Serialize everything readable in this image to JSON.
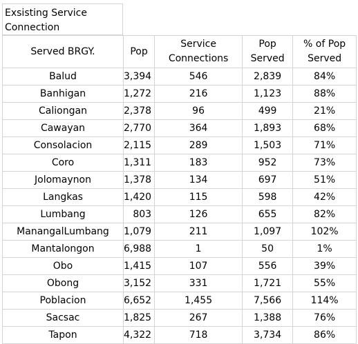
{
  "title": "Exsisting Service Connection",
  "headers": [
    "Served BRGY.",
    "Pop",
    "Service Connections",
    "Pop Served",
    "% of Pop Served"
  ],
  "rows": [
    [
      "Balud",
      "3,394",
      "546",
      "2,839",
      "84%"
    ],
    [
      "Banhigan",
      "1,272",
      "216",
      "1,123",
      "88%"
    ],
    [
      "Caliongan",
      "2,378",
      "96",
      "499",
      "21%"
    ],
    [
      "Cawayan",
      "2,770",
      "364",
      "1,893",
      "68%"
    ],
    [
      "Consolacion",
      "2,115",
      "289",
      "1,503",
      "71%"
    ],
    [
      "Coro",
      "1,311",
      "183",
      "952",
      "73%"
    ],
    [
      "Jolomaynon",
      "1,378",
      "134",
      "697",
      "51%"
    ],
    [
      "Langkas",
      "1,420",
      "115",
      "598",
      "42%"
    ],
    [
      "Lumbang",
      "803",
      "126",
      "655",
      "82%"
    ],
    [
      "ManangalLumbang",
      "1,079",
      "211",
      "1,097",
      "102%"
    ],
    [
      "Mantalongon",
      "6,988",
      "1",
      "50",
      "1%"
    ],
    [
      "Obo",
      "1,415",
      "107",
      "556",
      "39%"
    ],
    [
      "Obong",
      "3,152",
      "331",
      "1,721",
      "55%"
    ],
    [
      "Poblacion",
      "6,652",
      "1,455",
      "7,566",
      "114%"
    ],
    [
      "Sacsac",
      "1,825",
      "267",
      "1,388",
      "76%"
    ],
    [
      "Tapon",
      "4,322",
      "718",
      "3,734",
      "86%"
    ]
  ]
}
